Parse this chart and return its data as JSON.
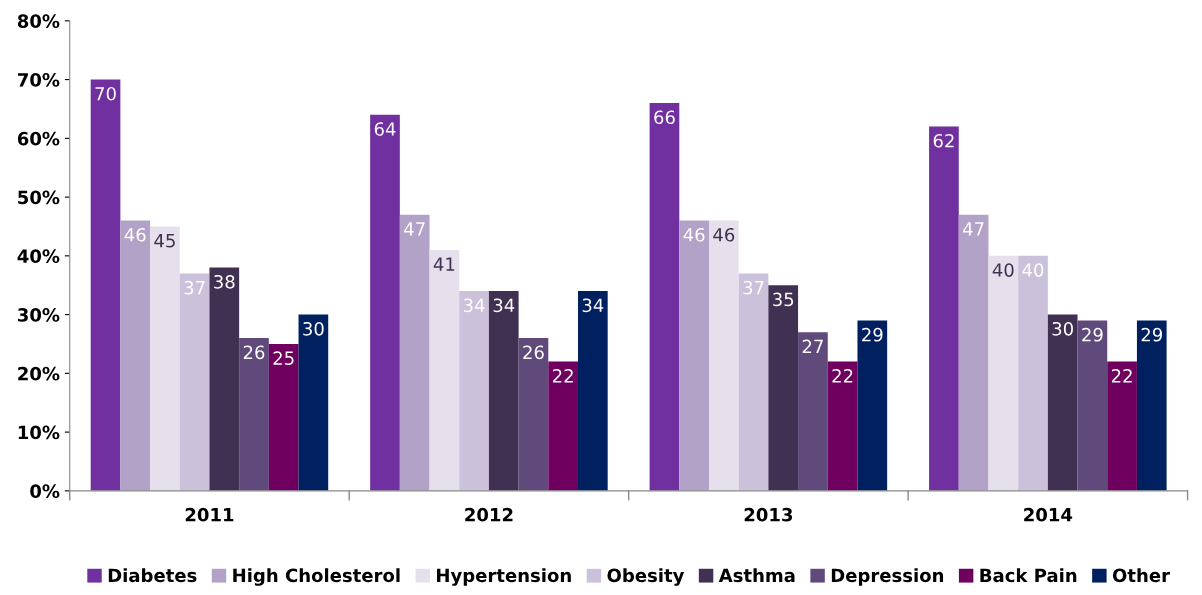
{
  "chart_data": {
    "type": "bar",
    "categories": [
      "2011",
      "2012",
      "2013",
      "2014"
    ],
    "series": [
      {
        "name": "Diabetes",
        "color": "#7030a0",
        "values": [
          70,
          64,
          66,
          62
        ]
      },
      {
        "name": "High Cholesterol",
        "color": "#b3a2c7",
        "values": [
          46,
          47,
          46,
          47
        ]
      },
      {
        "name": "Hypertension",
        "color": "#e6e0ec",
        "values": [
          45,
          41,
          46,
          40
        ]
      },
      {
        "name": "Obesity",
        "color": "#ccc1da",
        "values": [
          37,
          34,
          37,
          40
        ]
      },
      {
        "name": "Asthma",
        "color": "#403152",
        "values": [
          38,
          34,
          35,
          30
        ]
      },
      {
        "name": "Depression",
        "color": "#604a7b",
        "values": [
          26,
          26,
          27,
          29
        ]
      },
      {
        "name": "Back Pain",
        "color": "#700060",
        "values": [
          25,
          22,
          22,
          22
        ]
      },
      {
        "name": "Other",
        "color": "#002060",
        "values": [
          30,
          34,
          29,
          29
        ]
      }
    ],
    "ylim": [
      0,
      80
    ],
    "yticks": [
      {
        "value": 0,
        "label": "0%"
      },
      {
        "value": 10,
        "label": "10%"
      },
      {
        "value": 20,
        "label": "20%"
      },
      {
        "value": 30,
        "label": "30%"
      },
      {
        "value": 40,
        "label": "40%"
      },
      {
        "value": 50,
        "label": "50%"
      },
      {
        "value": 60,
        "label": "60%"
      },
      {
        "value": 70,
        "label": "70%"
      },
      {
        "value": 80,
        "label": "80%"
      }
    ],
    "data_labels": true,
    "grid": false,
    "legend": "bottom"
  }
}
